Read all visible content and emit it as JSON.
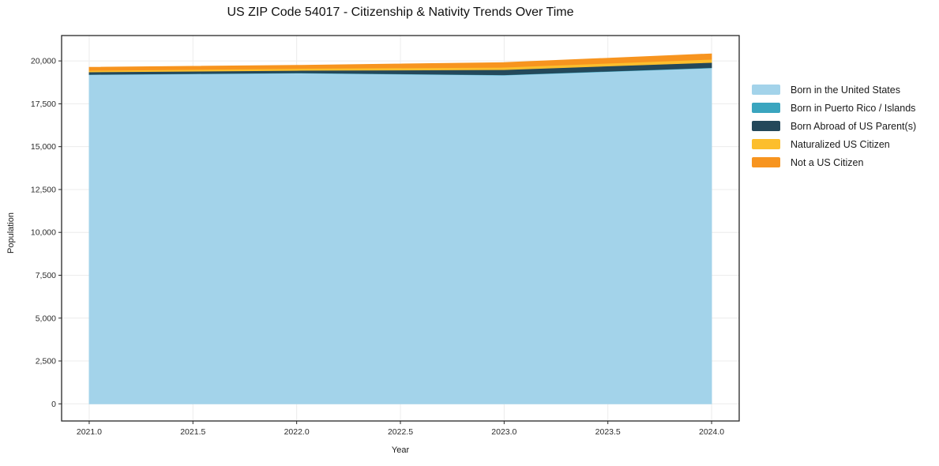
{
  "chart_data": {
    "type": "area",
    "stacked": true,
    "title": "US ZIP Code 54017 - Citizenship & Nativity Trends Over Time",
    "xlabel": "Year",
    "ylabel": "Population",
    "x": [
      2021,
      2022,
      2023,
      2024
    ],
    "series": [
      {
        "name": "Born in the United States",
        "color": "#a3d3ea",
        "values": [
          19200,
          19290,
          19170,
          19590
        ]
      },
      {
        "name": "Born in Puerto Rico / Islands",
        "color": "#3aa5bf",
        "values": [
          15,
          15,
          20,
          20
        ]
      },
      {
        "name": "Born Abroad of US Parent(s)",
        "color": "#24485a",
        "values": [
          140,
          140,
          300,
          300
        ]
      },
      {
        "name": "Naturalized US Citizen",
        "color": "#fcbe2d",
        "values": [
          90,
          115,
          140,
          185
        ]
      },
      {
        "name": "Not a US Citizen",
        "color": "#f7941f",
        "values": [
          185,
          185,
          275,
          320
        ]
      }
    ],
    "x_ticks": [
      "2021.0",
      "2021.5",
      "2022.0",
      "2022.5",
      "2023.0",
      "2023.5",
      "2024.0"
    ],
    "x_tick_values": [
      2021.0,
      2021.5,
      2022.0,
      2022.5,
      2023.0,
      2023.5,
      2024.0
    ],
    "y_ticks": [
      0,
      2500,
      5000,
      7500,
      10000,
      12500,
      15000,
      17500,
      20000
    ],
    "xlim": [
      2020.867,
      2024.133
    ],
    "ylim": [
      -1000,
      21480
    ],
    "grid": true,
    "grid_color": "#ececec",
    "spine_color": "#262626",
    "tick_label_color": "#2b2b2b",
    "background_color": "#ffffff",
    "legend_position": "right"
  }
}
